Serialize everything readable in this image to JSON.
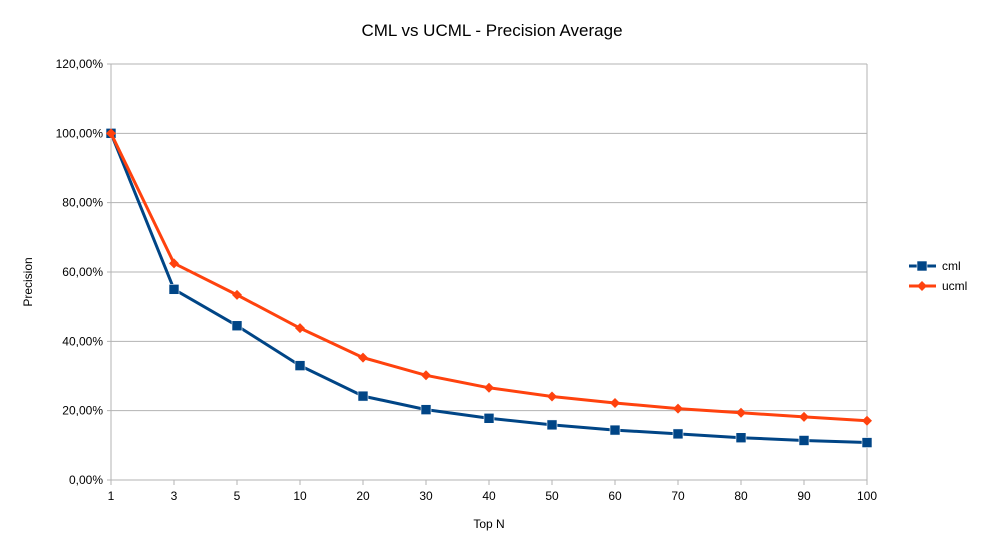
{
  "chart_data": {
    "type": "line",
    "title": "CML vs UCML - Precision Average",
    "xlabel": "Top N",
    "ylabel": "Precision",
    "categories": [
      "1",
      "3",
      "5",
      "10",
      "20",
      "30",
      "40",
      "50",
      "60",
      "70",
      "80",
      "90",
      "100"
    ],
    "y_ticks": [
      "0,00%",
      "20,00%",
      "40,00%",
      "60,00%",
      "80,00%",
      "100,00%",
      "120,00%"
    ],
    "ylim": [
      0,
      120
    ],
    "grid": true,
    "legend_position": "right",
    "series": [
      {
        "name": "cml",
        "color": "#004586",
        "marker": "square",
        "values": [
          100,
          55,
          44.5,
          33,
          24.2,
          20.3,
          17.8,
          15.9,
          14.4,
          13.3,
          12.2,
          11.4,
          10.8
        ]
      },
      {
        "name": "ucml",
        "color": "#ff420e",
        "marker": "diamond",
        "values": [
          100,
          62.5,
          53.4,
          43.8,
          35.3,
          30.2,
          26.6,
          24.1,
          22.2,
          20.6,
          19.4,
          18.2,
          17.1
        ]
      }
    ]
  }
}
